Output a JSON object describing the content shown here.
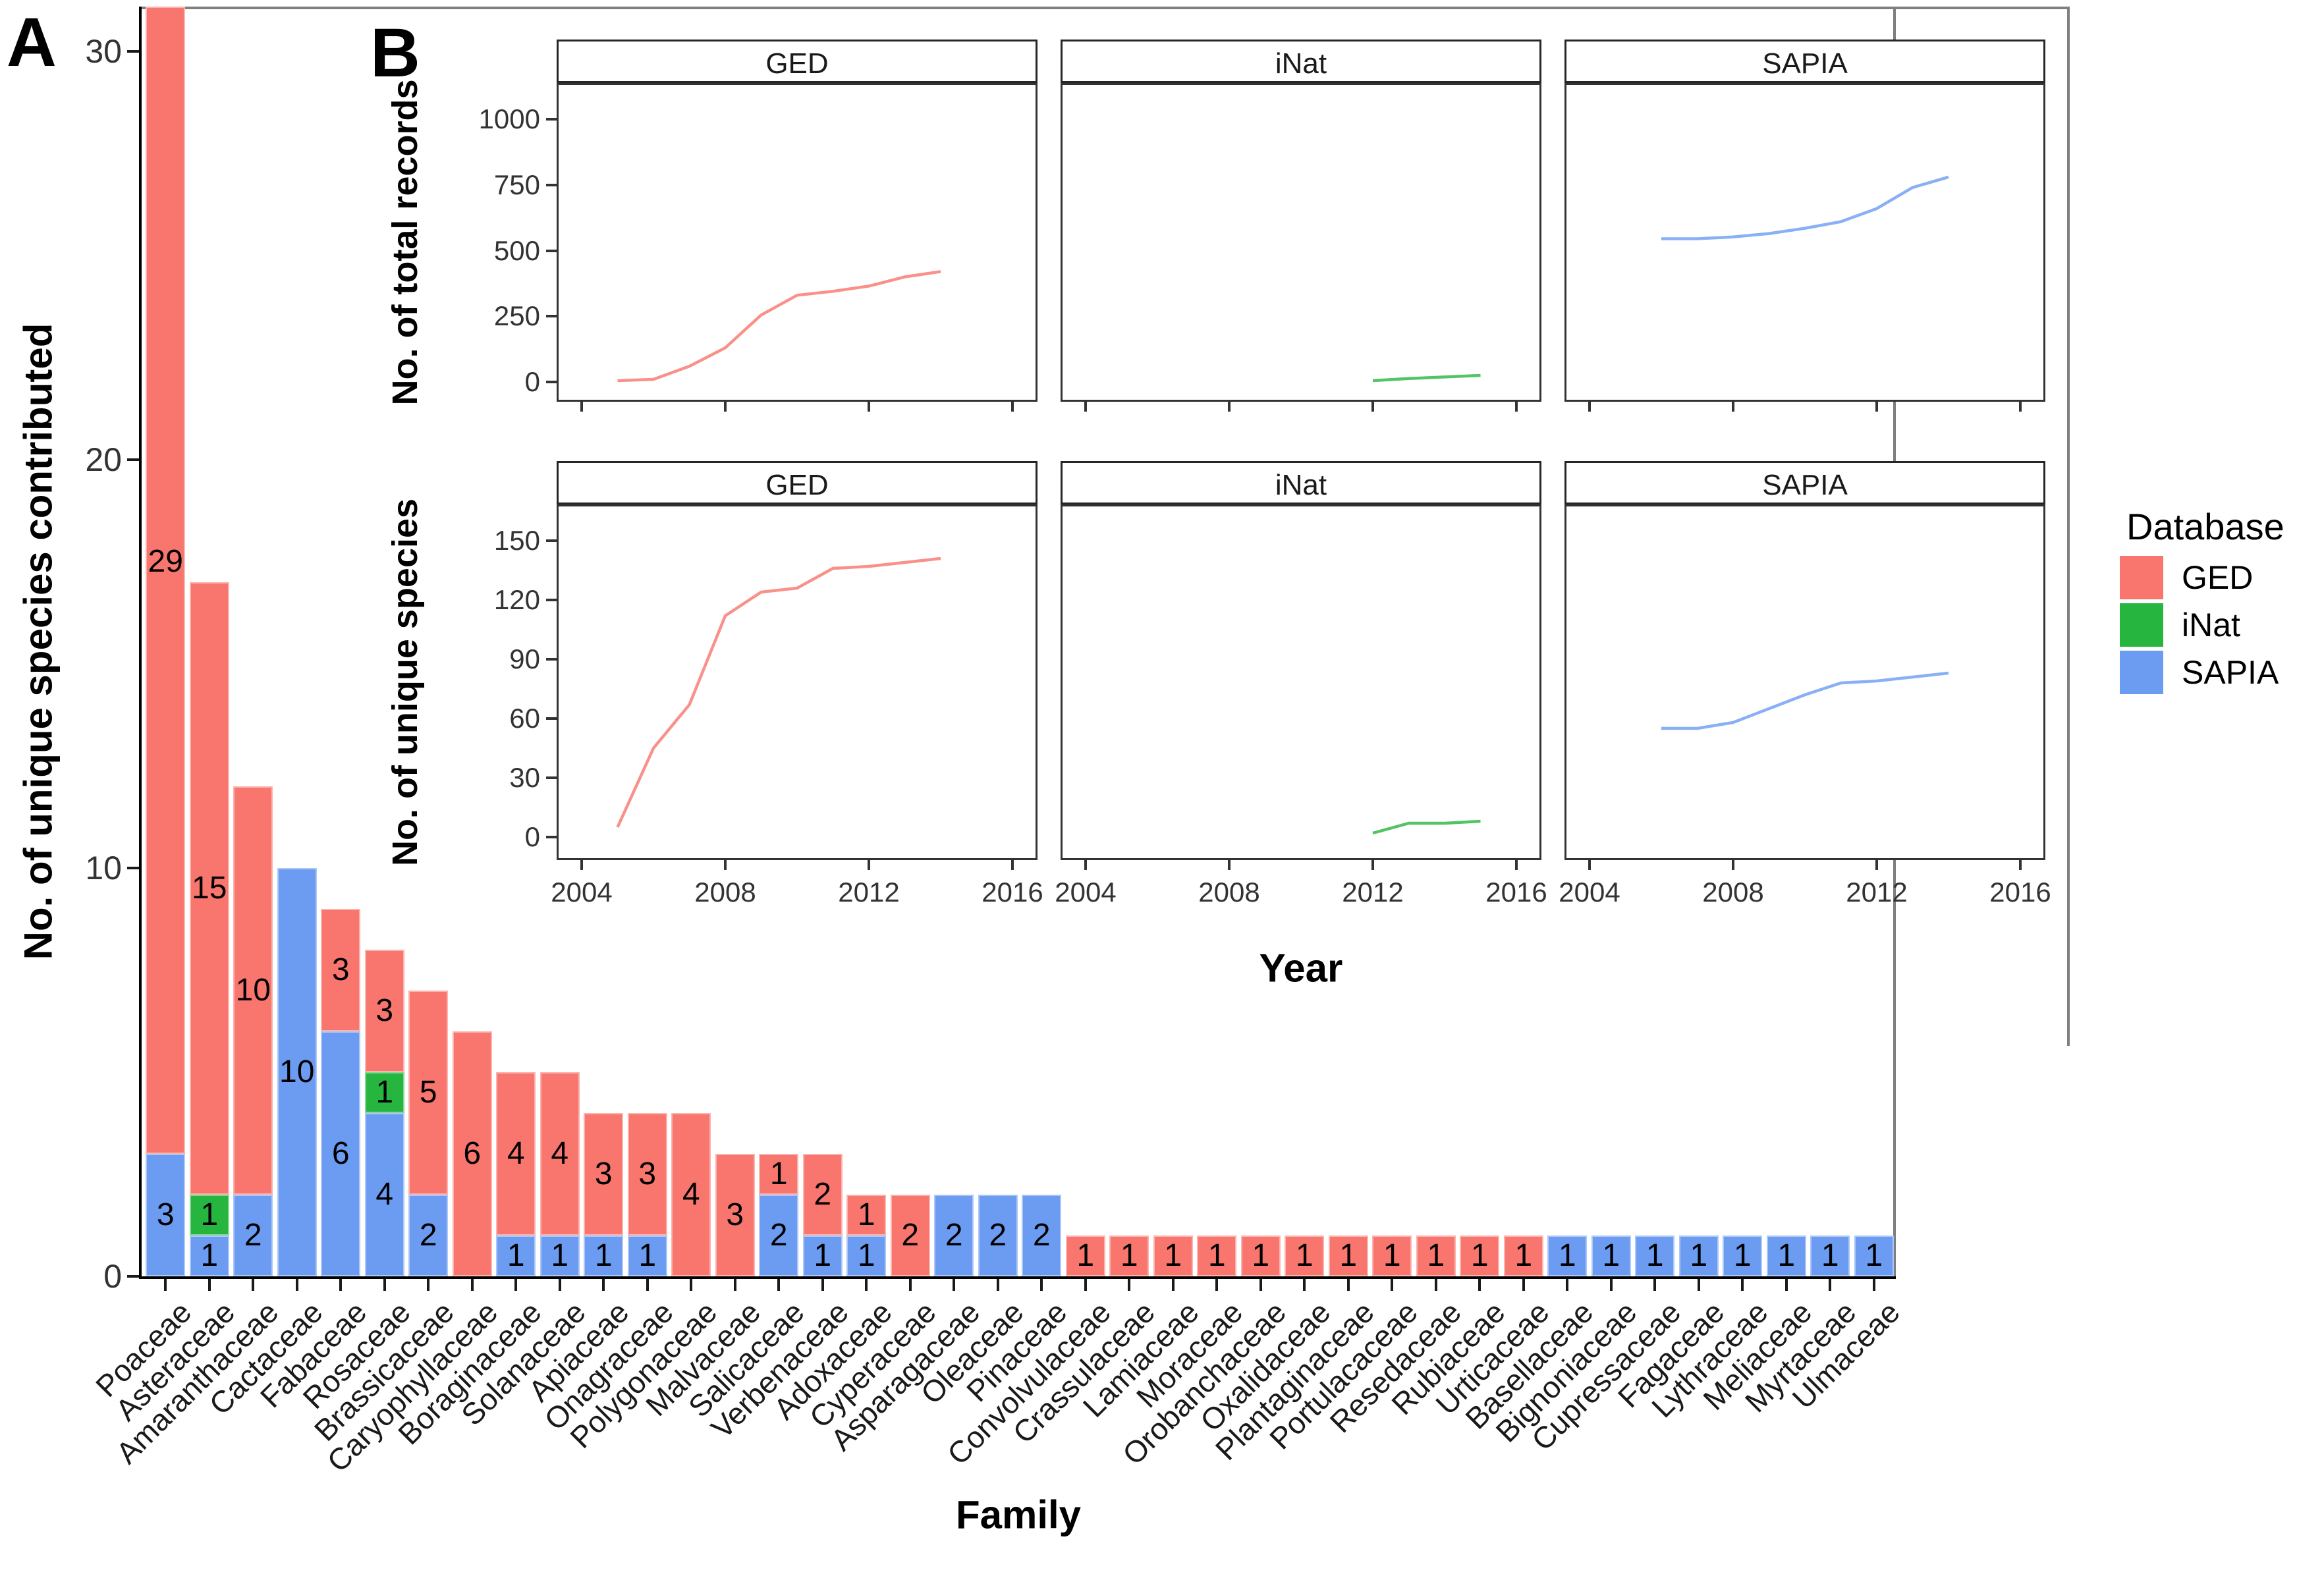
{
  "panel_a": {
    "label": "A",
    "ylabel": "No. of unique species contributed",
    "xlabel": "Family"
  },
  "panel_b": {
    "label": "B",
    "xlabel": "Year"
  },
  "legend": {
    "title": "Database",
    "entries": [
      {
        "label": "GED",
        "color": "#f8766d"
      },
      {
        "label": "iNat",
        "color": "#26b53e"
      },
      {
        "label": "SAPIA",
        "color": "#6b9cf2"
      }
    ]
  },
  "colors": {
    "GED": "#f8766d",
    "iNat": "#26b53e",
    "SAPIA": "#6b9cf2"
  },
  "chart_data": [
    {
      "type": "bar",
      "stacked": true,
      "stack_order_bottom_to_top": [
        "SAPIA",
        "iNat",
        "GED"
      ],
      "title": "",
      "xlabel": "Family",
      "ylabel": "No. of unique species contributed",
      "ylim": [
        0,
        31
      ],
      "yticks": [
        0,
        10,
        20,
        30
      ],
      "grid": false,
      "bar_value_labels": true,
      "categories": [
        "Poaceae",
        "Asteraceae",
        "Amaranthaceae",
        "Cactaceae",
        "Fabaceae",
        "Rosaceae",
        "Brassicaceae",
        "Caryophyllaceae",
        "Boraginaceae",
        "Solanaceae",
        "Apiaceae",
        "Onagraceae",
        "Polygonaceae",
        "Malvaceae",
        "Salicaceae",
        "Verbenaceae",
        "Adoxaceae",
        "Cyperaceae",
        "Asparagaceae",
        "Oleaceae",
        "Pinaceae",
        "Convolvulaceae",
        "Crassulaceae",
        "Lamiaceae",
        "Moraceae",
        "Orobanchaceae",
        "Oxalidaceae",
        "Plantaginaceae",
        "Portulacaceae",
        "Resedaceae",
        "Rubiaceae",
        "Urticaceae",
        "Basellaceae",
        "Bignoniaceae",
        "Cupressaceae",
        "Fagaceae",
        "Lythraceae",
        "Meliaceae",
        "Myrtaceae",
        "Ulmaceae"
      ],
      "series": [
        {
          "name": "GED",
          "values": [
            29,
            15,
            10,
            0,
            3,
            3,
            5,
            6,
            4,
            4,
            3,
            3,
            4,
            3,
            1,
            2,
            1,
            2,
            0,
            0,
            0,
            1,
            1,
            1,
            1,
            1,
            1,
            1,
            1,
            1,
            1,
            1,
            0,
            0,
            0,
            0,
            0,
            0,
            0,
            0
          ]
        },
        {
          "name": "iNat",
          "values": [
            0,
            1,
            0,
            0,
            0,
            1,
            0,
            0,
            0,
            0,
            0,
            0,
            0,
            0,
            0,
            0,
            0,
            0,
            0,
            0,
            0,
            0,
            0,
            0,
            0,
            0,
            0,
            0,
            0,
            0,
            0,
            0,
            0,
            0,
            0,
            0,
            0,
            0,
            0,
            0
          ]
        },
        {
          "name": "SAPIA",
          "values": [
            3,
            1,
            2,
            10,
            6,
            4,
            2,
            0,
            1,
            1,
            1,
            1,
            0,
            0,
            2,
            1,
            1,
            0,
            2,
            2,
            2,
            0,
            0,
            0,
            0,
            0,
            0,
            0,
            0,
            0,
            0,
            0,
            1,
            1,
            1,
            1,
            1,
            1,
            1,
            1
          ]
        }
      ]
    },
    {
      "type": "line",
      "facets": [
        "GED",
        "iNat",
        "SAPIA"
      ],
      "xlabel": "Year",
      "xlim": [
        2003.3,
        2016.7
      ],
      "xticks": [
        2004,
        2008,
        2012,
        2016
      ],
      "grid": false,
      "legend_position": "right",
      "rows": [
        {
          "ylabel": "No. of total records",
          "ylim": [
            0,
            1050
          ],
          "yticks": [
            0,
            250,
            500,
            750,
            1000
          ],
          "series": [
            {
              "name": "GED",
              "points": [
                [
                  2005,
                  5
                ],
                [
                  2006,
                  10
                ],
                [
                  2007,
                  60
                ],
                [
                  2008,
                  130
                ],
                [
                  2009,
                  255
                ],
                [
                  2010,
                  330
                ],
                [
                  2011,
                  345
                ],
                [
                  2012,
                  365
                ],
                [
                  2013,
                  400
                ],
                [
                  2014,
                  420
                ]
              ]
            },
            {
              "name": "iNat",
              "points": [
                [
                  2012,
                  5
                ],
                [
                  2013,
                  13
                ],
                [
                  2014,
                  19
                ],
                [
                  2015,
                  25
                ]
              ]
            },
            {
              "name": "SAPIA",
              "points": [
                [
                  2006,
                  545
                ],
                [
                  2007,
                  545
                ],
                [
                  2008,
                  552
                ],
                [
                  2009,
                  565
                ],
                [
                  2010,
                  585
                ],
                [
                  2011,
                  610
                ],
                [
                  2012,
                  660
                ],
                [
                  2013,
                  740
                ],
                [
                  2014,
                  780
                ]
              ]
            }
          ]
        },
        {
          "ylabel": "No. of unique species",
          "ylim": [
            0,
            150
          ],
          "yticks": [
            0,
            30,
            60,
            90,
            120,
            150
          ],
          "series": [
            {
              "name": "GED",
              "points": [
                [
                  2005,
                  5
                ],
                [
                  2006,
                  45
                ],
                [
                  2007,
                  67
                ],
                [
                  2008,
                  112
                ],
                [
                  2009,
                  124
                ],
                [
                  2010,
                  126
                ],
                [
                  2011,
                  136
                ],
                [
                  2012,
                  137
                ],
                [
                  2013,
                  139
                ],
                [
                  2014,
                  141
                ]
              ]
            },
            {
              "name": "iNat",
              "points": [
                [
                  2012,
                  2
                ],
                [
                  2013,
                  7
                ],
                [
                  2014,
                  7
                ],
                [
                  2015,
                  8
                ]
              ]
            },
            {
              "name": "SAPIA",
              "points": [
                [
                  2006,
                  55
                ],
                [
                  2007,
                  55
                ],
                [
                  2008,
                  58
                ],
                [
                  2009,
                  65
                ],
                [
                  2010,
                  72
                ],
                [
                  2011,
                  78
                ],
                [
                  2012,
                  79
                ],
                [
                  2013,
                  81
                ],
                [
                  2014,
                  83
                ]
              ]
            }
          ]
        }
      ]
    }
  ]
}
